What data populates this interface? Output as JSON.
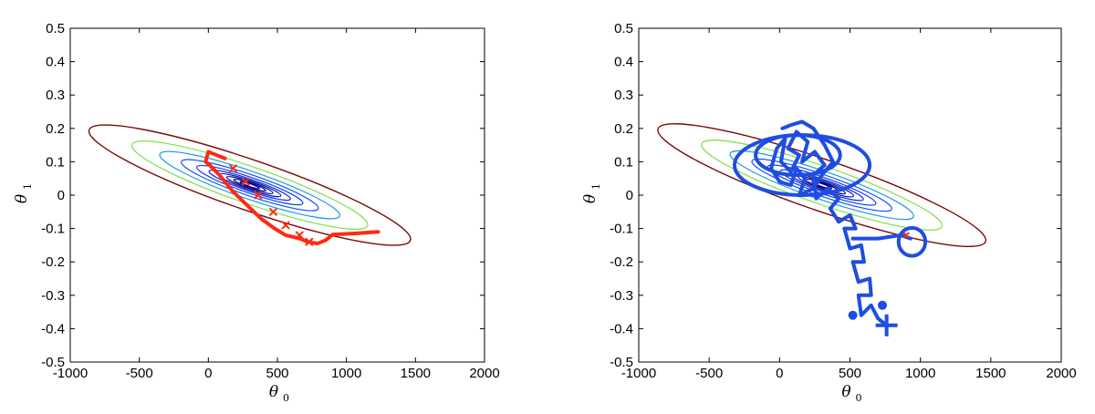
{
  "chart_data": [
    {
      "type": "contour",
      "title": "",
      "xlabel": "θ",
      "xlabel_sub": "0",
      "ylabel": "θ",
      "ylabel_sub": "1",
      "xlim": [
        -1000,
        2000
      ],
      "ylim": [
        -0.5,
        0.5
      ],
      "xticks": [
        -1000,
        -500,
        0,
        500,
        1000,
        1500,
        2000
      ],
      "xtick_labels": [
        "-1000",
        "-500",
        "0",
        "500",
        "1000",
        "1500",
        "2000"
      ],
      "yticks": [
        0.5,
        0.4,
        0.3,
        0.2,
        0.1,
        0,
        -0.1,
        -0.2,
        -0.3,
        -0.4,
        -0.5
      ],
      "ytick_labels": [
        "0.5",
        "0.4",
        "0.3",
        "0.2",
        "0.1",
        "0",
        "-0.1",
        "-0.2",
        "-0.3",
        "-0.4",
        "-0.5"
      ],
      "grid": false,
      "contour_center": [
        300,
        0.03
      ],
      "contour_angle_deg": -36,
      "contour_levels": [
        {
          "a": 90,
          "b": 12,
          "color": "#00008f"
        },
        {
          "a": 150,
          "b": 20,
          "color": "#00008f"
        },
        {
          "a": 215,
          "b": 29,
          "color": "#00008f"
        },
        {
          "a": 290,
          "b": 40,
          "color": "#0010c0"
        },
        {
          "a": 380,
          "b": 52,
          "color": "#0a2ae0"
        },
        {
          "a": 495,
          "b": 69,
          "color": "#0a3fef"
        },
        {
          "a": 640,
          "b": 92,
          "color": "#1650ff"
        },
        {
          "a": 840,
          "b": 122,
          "color": "#1e9be8"
        },
        {
          "a": 1100,
          "b": 162,
          "color": "#7fe04a"
        },
        {
          "a": 1500,
          "b": 222,
          "color": "#7a0a0a"
        }
      ],
      "series": [
        {
          "color": "#ff2a10",
          "path": [
            [
              1230,
              -0.11
            ],
            [
              1050,
              -0.115
            ],
            [
              900,
              -0.118
            ],
            [
              850,
              -0.135
            ],
            [
              790,
              -0.145
            ],
            [
              720,
              -0.14
            ],
            [
              660,
              -0.13
            ],
            [
              560,
              -0.12
            ],
            [
              480,
              -0.1
            ],
            [
              380,
              -0.07
            ],
            [
              280,
              -0.03
            ],
            [
              180,
              0.01
            ],
            [
              80,
              0.06
            ],
            [
              10,
              0.09
            ],
            [
              -20,
              0.1
            ],
            [
              0,
              0.13
            ],
            [
              60,
              0.12
            ],
            [
              120,
              0.11
            ]
          ],
          "markers": [
            [
              180,
              0.08
            ],
            [
              270,
              0.04
            ],
            [
              360,
              0.0
            ],
            [
              470,
              -0.05
            ],
            [
              560,
              -0.09
            ],
            [
              660,
              -0.12
            ],
            [
              730,
              -0.14
            ]
          ]
        }
      ]
    },
    {
      "type": "contour",
      "title": "",
      "xlabel": "θ",
      "xlabel_sub": "0",
      "ylabel": "θ",
      "ylabel_sub": "1",
      "xlim": [
        -1000,
        2000
      ],
      "ylim": [
        -0.5,
        0.5
      ],
      "xticks": [
        -1000,
        -500,
        0,
        500,
        1000,
        1500,
        2000
      ],
      "xtick_labels": [
        "-1000",
        "-500",
        "0",
        "500",
        "1000",
        "1500",
        "2000"
      ],
      "yticks": [
        0.5,
        0.4,
        0.3,
        0.2,
        0.1,
        0,
        -0.1,
        -0.2,
        -0.3,
        -0.4,
        -0.5
      ],
      "ytick_labels": [
        "0.5",
        "0.4",
        "0.3",
        "0.2",
        "0.1",
        "0",
        "-0.1",
        "-0.2",
        "-0.3",
        "-0.4",
        "-0.5"
      ],
      "grid": false,
      "contour_center": [
        300,
        0.03
      ],
      "contour_angle_deg": -36,
      "contour_levels": [
        {
          "a": 90,
          "b": 12,
          "color": "#00008f"
        },
        {
          "a": 150,
          "b": 20,
          "color": "#00008f"
        },
        {
          "a": 215,
          "b": 29,
          "color": "#00008f"
        },
        {
          "a": 290,
          "b": 40,
          "color": "#0010c0"
        },
        {
          "a": 380,
          "b": 52,
          "color": "#0a2ae0"
        },
        {
          "a": 495,
          "b": 69,
          "color": "#0a3fef"
        },
        {
          "a": 640,
          "b": 92,
          "color": "#1650ff"
        },
        {
          "a": 840,
          "b": 122,
          "color": "#1e9be8"
        },
        {
          "a": 1100,
          "b": 162,
          "color": "#7fe04a"
        },
        {
          "a": 1500,
          "b": 222,
          "color": "#7a0a0a"
        }
      ],
      "series": [
        {
          "color": "#1e4de0",
          "path": [
            [
              760,
              -0.39
            ],
            [
              700,
              -0.37
            ],
            [
              650,
              -0.33
            ],
            [
              580,
              -0.36
            ],
            [
              560,
              -0.3
            ],
            [
              650,
              -0.3
            ],
            [
              640,
              -0.25
            ],
            [
              560,
              -0.26
            ],
            [
              520,
              -0.2
            ],
            [
              600,
              -0.2
            ],
            [
              580,
              -0.15
            ],
            [
              500,
              -0.16
            ],
            [
              460,
              -0.1
            ],
            [
              540,
              -0.1
            ],
            [
              500,
              -0.06
            ],
            [
              420,
              -0.08
            ],
            [
              360,
              -0.04
            ],
            [
              420,
              -0.01
            ],
            [
              340,
              0.02
            ],
            [
              260,
              -0.01
            ],
            [
              240,
              0.06
            ],
            [
              320,
              0.09
            ],
            [
              250,
              0.13
            ],
            [
              160,
              0.1
            ],
            [
              200,
              0.16
            ],
            [
              120,
              0.19
            ],
            [
              60,
              0.14
            ],
            [
              140,
              0.12
            ],
            [
              80,
              0.07
            ],
            [
              10,
              0.1
            ],
            [
              40,
              0.17
            ],
            [
              -20,
              0.14
            ],
            [
              -60,
              0.08
            ],
            [
              0,
              0.04
            ],
            [
              80,
              0.03
            ],
            [
              120,
              0.08
            ],
            [
              180,
              0.05
            ],
            [
              140,
              0.0
            ],
            [
              240,
              0.02
            ],
            [
              300,
              0.06
            ],
            [
              380,
              0.1
            ],
            [
              320,
              0.15
            ],
            [
              240,
              0.2
            ],
            [
              160,
              0.22
            ],
            [
              80,
              0.21
            ],
            [
              20,
              0.2
            ]
          ],
          "circles": [
            {
              "cx": 160,
              "cy": 0.09,
              "rx": 480,
              "ry": 0.09
            },
            {
              "cx": 130,
              "cy": 0.12,
              "rx": 300,
              "ry": 0.06
            },
            {
              "cx": 940,
              "cy": -0.14,
              "rx": 95,
              "ry": 0.042
            }
          ],
          "tail": [
            [
              520,
              -0.13
            ],
            [
              700,
              -0.13
            ],
            [
              860,
              -0.12
            ],
            [
              930,
              -0.13
            ]
          ],
          "dots": [
            [
              520,
              -0.36
            ],
            [
              730,
              -0.33
            ]
          ],
          "cross": [
            760,
            -0.39
          ],
          "start_marker": [
            900,
            -0.12
          ]
        }
      ]
    }
  ]
}
